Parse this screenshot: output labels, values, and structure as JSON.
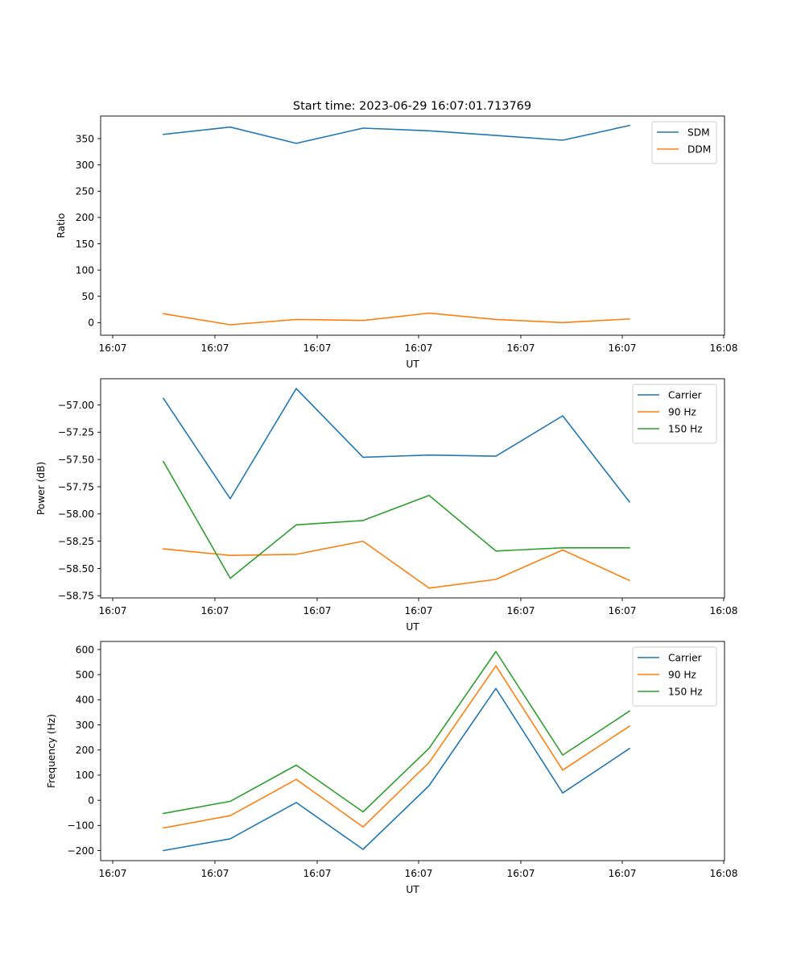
{
  "figure": {
    "title": "Start time: 2023-06-29 16:07:01.713769"
  },
  "chart_data": [
    {
      "type": "line",
      "title": "Start time: 2023-06-29 16:07:01.713769",
      "xlabel": "UT",
      "ylabel": "Ratio",
      "x_tick_labels": [
        "16:07",
        "16:07",
        "16:07",
        "16:07",
        "16:07",
        "16:07",
        "16:08"
      ],
      "y_ticks": [
        0,
        50,
        100,
        150,
        200,
        250,
        300,
        350
      ],
      "ylim": [
        -24,
        393
      ],
      "grid": false,
      "legend_position": "top-right",
      "series": [
        {
          "name": "SDM",
          "color": "#1f77b4",
          "values": [
            358,
            372,
            341,
            370,
            365,
            356,
            347,
            375
          ]
        },
        {
          "name": "DDM",
          "color": "#ff7f0e",
          "values": [
            17,
            -4,
            6,
            4,
            18,
            6,
            0,
            7
          ]
        }
      ]
    },
    {
      "type": "line",
      "title": "",
      "xlabel": "UT",
      "ylabel": "Power (dB)",
      "x_tick_labels": [
        "16:07",
        "16:07",
        "16:07",
        "16:07",
        "16:07",
        "16:07",
        "16:08"
      ],
      "y_ticks": [
        -58.75,
        -58.5,
        -58.25,
        -58.0,
        -57.75,
        -57.5,
        -57.25,
        -57.0
      ],
      "y_tick_labels": [
        "−58.75",
        "−58.50",
        "−58.25",
        "−58.00",
        "−57.75",
        "−57.50",
        "−57.25",
        "−57.00"
      ],
      "ylim": [
        -58.77,
        -56.76
      ],
      "grid": false,
      "legend_position": "top-right",
      "series": [
        {
          "name": "Carrier",
          "color": "#1f77b4",
          "values": [
            -56.94,
            -57.86,
            -56.85,
            -57.48,
            -57.46,
            -57.47,
            -57.1,
            -57.89
          ]
        },
        {
          "name": "90 Hz",
          "color": "#ff7f0e",
          "values": [
            -58.32,
            -58.38,
            -58.37,
            -58.25,
            -58.68,
            -58.6,
            -58.33,
            -58.61
          ]
        },
        {
          "name": "150 Hz",
          "color": "#2ca02c",
          "values": [
            -57.52,
            -58.59,
            -58.1,
            -58.06,
            -57.83,
            -58.34,
            -58.31,
            -58.31
          ]
        }
      ]
    },
    {
      "type": "line",
      "title": "",
      "xlabel": "UT",
      "ylabel": "Frequency (Hz)",
      "x_tick_labels": [
        "16:07",
        "16:07",
        "16:07",
        "16:07",
        "16:07",
        "16:07",
        "16:08"
      ],
      "y_ticks": [
        -200,
        -100,
        0,
        100,
        200,
        300,
        400,
        500,
        600
      ],
      "y_tick_labels": [
        "−200",
        "−100",
        "0",
        "100",
        "200",
        "300",
        "400",
        "500",
        "600"
      ],
      "ylim": [
        -240,
        632
      ],
      "grid": false,
      "legend_position": "top-right",
      "series": [
        {
          "name": "Carrier",
          "color": "#1f77b4",
          "values": [
            -200,
            -153,
            -9,
            -195,
            58,
            445,
            29,
            206
          ]
        },
        {
          "name": "90 Hz",
          "color": "#ff7f0e",
          "values": [
            -110,
            -61,
            83,
            -106,
            150,
            535,
            120,
            295
          ]
        },
        {
          "name": "150 Hz",
          "color": "#2ca02c",
          "values": [
            -52,
            -4,
            140,
            -46,
            207,
            592,
            180,
            355
          ]
        }
      ]
    }
  ]
}
